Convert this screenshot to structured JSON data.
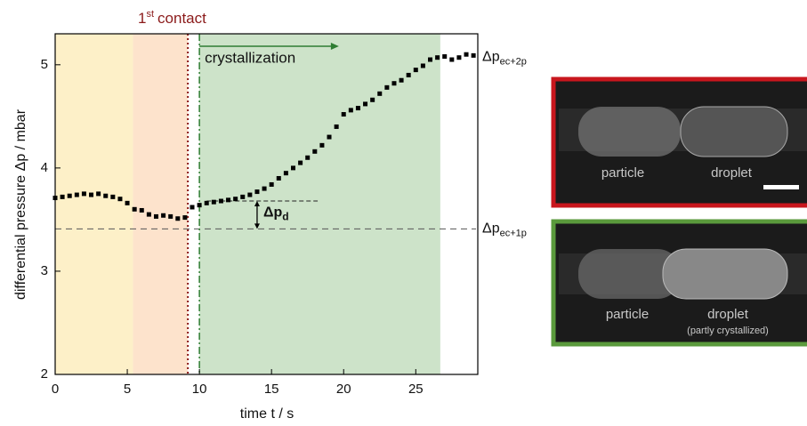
{
  "chart_data": {
    "type": "scatter",
    "x_label": "time t  /  s",
    "y_label": "differential pressure Δp  /  mbar",
    "xlim": [
      0,
      29.3
    ],
    "ylim": [
      2,
      5.3
    ],
    "xticks": [
      0,
      5,
      10,
      15,
      20,
      25
    ],
    "yticks": [
      2,
      3,
      4,
      5
    ],
    "color": "#000000",
    "regions": [
      {
        "start": 0,
        "end": 5.4,
        "color": "#fdf0c8"
      },
      {
        "start": 5.4,
        "end": 9.2,
        "color": "#fde3cc"
      },
      {
        "start": 10,
        "end": 26.7,
        "color": "#cde3c9"
      }
    ],
    "first_contact": {
      "base": "1",
      "sup": "st",
      "text": "contact",
      "x": 9.2,
      "color": "#8b1a1a"
    },
    "crystallization": {
      "text": "crystallization",
      "x": 10,
      "arrow_end": 19.3,
      "color": "#2e7d32"
    },
    "reference_lines": [
      {
        "y": 3.41,
        "base": "Δp",
        "sub": "ec+1p"
      },
      {
        "y": 5.07,
        "base": "Δp",
        "sub": "ec+2p"
      }
    ],
    "delta_pd": {
      "base": "Δp",
      "sub": "d",
      "x": 14,
      "y_top": 3.68,
      "line_start": 10.5,
      "line_end": 18.2
    },
    "x": [
      0,
      0.5,
      1,
      1.5,
      2,
      2.5,
      3,
      3.5,
      4,
      4.5,
      5,
      5.5,
      6,
      6.5,
      7,
      7.5,
      8,
      8.5,
      9,
      9.5,
      10,
      10.5,
      11,
      11.5,
      12,
      12.5,
      13,
      13.5,
      14,
      14.5,
      15,
      15.5,
      16,
      16.5,
      17,
      17.5,
      18,
      18.5,
      19,
      19.5,
      20,
      20.5,
      21,
      21.5,
      22,
      22.5,
      23,
      23.5,
      24,
      24.5,
      25,
      25.5,
      26,
      26.5,
      27,
      27.5,
      28,
      28.5,
      29
    ],
    "values": [
      3.71,
      3.72,
      3.73,
      3.74,
      3.75,
      3.74,
      3.75,
      3.73,
      3.72,
      3.7,
      3.66,
      3.6,
      3.59,
      3.55,
      3.53,
      3.54,
      3.53,
      3.51,
      3.52,
      3.62,
      3.64,
      3.66,
      3.67,
      3.68,
      3.69,
      3.7,
      3.72,
      3.74,
      3.77,
      3.8,
      3.84,
      3.9,
      3.95,
      4.0,
      4.05,
      4.1,
      4.16,
      4.22,
      4.3,
      4.4,
      4.52,
      4.56,
      4.58,
      4.62,
      4.66,
      4.72,
      4.78,
      4.82,
      4.85,
      4.9,
      4.95,
      4.99,
      5.05,
      5.07,
      5.08,
      5.05,
      5.07,
      5.1,
      5.09
    ]
  },
  "panels": [
    {
      "border": "#c8161d",
      "labels": [
        "particle",
        "droplet"
      ]
    },
    {
      "border": "#5a9a3c",
      "labels": [
        "particle",
        "droplet",
        "(partly crystallized)"
      ]
    }
  ]
}
